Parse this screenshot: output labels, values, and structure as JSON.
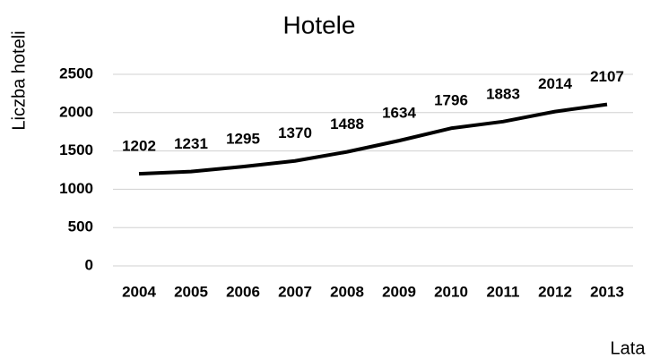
{
  "chart_data": {
    "type": "line",
    "title": "Hotele",
    "y_label": "Liczba hoteli",
    "x_label": "Lata",
    "categories": [
      "2004",
      "2005",
      "2006",
      "2007",
      "2008",
      "2009",
      "2010",
      "2011",
      "2012",
      "2013"
    ],
    "series": [
      {
        "name": "Hotele",
        "color": "#000000",
        "values": [
          1202,
          1231,
          1295,
          1370,
          1488,
          1634,
          1796,
          1883,
          2014,
          2107
        ]
      }
    ],
    "ylim": [
      0,
      2500
    ],
    "yticks": [
      0,
      500,
      1000,
      1500,
      2000,
      2500
    ],
    "grid": true,
    "data_labels": true
  }
}
